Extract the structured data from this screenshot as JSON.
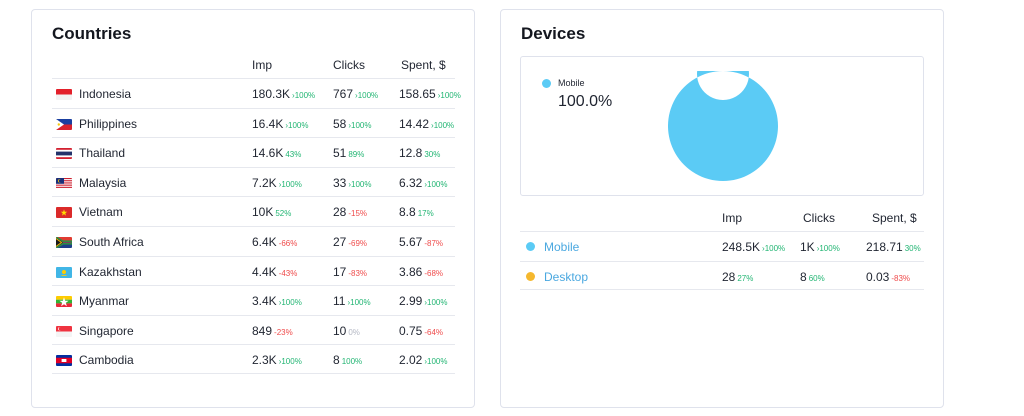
{
  "countries": {
    "title": "Countries",
    "headers": {
      "imp": "Imp",
      "clicks": "Clicks",
      "spent": "Spent, $"
    },
    "rows": [
      {
        "name": "Indonesia",
        "flag": "indonesia-flag-icon",
        "imp": "180.3K",
        "imp_delta": "›100%",
        "imp_trend": "up",
        "clicks": "767",
        "clicks_delta": "›100%",
        "clicks_trend": "up",
        "spent": "158.65",
        "spent_delta": "›100%",
        "spent_trend": "up"
      },
      {
        "name": "Philippines",
        "flag": "philippines-flag-icon",
        "imp": "16.4K",
        "imp_delta": "›100%",
        "imp_trend": "up",
        "clicks": "58",
        "clicks_delta": "›100%",
        "clicks_trend": "up",
        "spent": "14.42",
        "spent_delta": "›100%",
        "spent_trend": "up"
      },
      {
        "name": "Thailand",
        "flag": "thailand-flag-icon",
        "imp": "14.6K",
        "imp_delta": "43%",
        "imp_trend": "up",
        "clicks": "51",
        "clicks_delta": "89%",
        "clicks_trend": "up",
        "spent": "12.8",
        "spent_delta": "30%",
        "spent_trend": "up"
      },
      {
        "name": "Malaysia",
        "flag": "malaysia-flag-icon",
        "imp": "7.2K",
        "imp_delta": "›100%",
        "imp_trend": "up",
        "clicks": "33",
        "clicks_delta": "›100%",
        "clicks_trend": "up",
        "spent": "6.32",
        "spent_delta": "›100%",
        "spent_trend": "up"
      },
      {
        "name": "Vietnam",
        "flag": "vietnam-flag-icon",
        "imp": "10K",
        "imp_delta": "52%",
        "imp_trend": "up",
        "clicks": "28",
        "clicks_delta": "-15%",
        "clicks_trend": "down",
        "spent": "8.8",
        "spent_delta": "17%",
        "spent_trend": "up"
      },
      {
        "name": "South Africa",
        "flag": "south-africa-flag-icon",
        "imp": "6.4K",
        "imp_delta": "-66%",
        "imp_trend": "down",
        "clicks": "27",
        "clicks_delta": "-69%",
        "clicks_trend": "down",
        "spent": "5.67",
        "spent_delta": "-87%",
        "spent_trend": "down"
      },
      {
        "name": "Kazakhstan",
        "flag": "kazakhstan-flag-icon",
        "imp": "4.4K",
        "imp_delta": "-43%",
        "imp_trend": "down",
        "clicks": "17",
        "clicks_delta": "-83%",
        "clicks_trend": "down",
        "spent": "3.86",
        "spent_delta": "-68%",
        "spent_trend": "down"
      },
      {
        "name": "Myanmar",
        "flag": "myanmar-flag-icon",
        "imp": "3.4K",
        "imp_delta": "›100%",
        "imp_trend": "up",
        "clicks": "11",
        "clicks_delta": "›100%",
        "clicks_trend": "up",
        "spent": "2.99",
        "spent_delta": "›100%",
        "spent_trend": "up"
      },
      {
        "name": "Singapore",
        "flag": "singapore-flag-icon",
        "imp": "849",
        "imp_delta": "-23%",
        "imp_trend": "down",
        "clicks": "10",
        "clicks_delta": "0%",
        "clicks_trend": "neutral",
        "spent": "0.75",
        "spent_delta": "-64%",
        "spent_trend": "down"
      },
      {
        "name": "Cambodia",
        "flag": "cambodia-flag-icon",
        "imp": "2.3K",
        "imp_delta": "›100%",
        "imp_trend": "up",
        "clicks": "8",
        "clicks_delta": "100%",
        "clicks_trend": "up",
        "spent": "2.02",
        "spent_delta": "›100%",
        "spent_trend": "up"
      }
    ]
  },
  "devices": {
    "title": "Devices",
    "legend": {
      "name": "Mobile",
      "percent": "100.0%"
    },
    "chart_data": {
      "type": "pie",
      "categories": [
        "Mobile",
        "Desktop"
      ],
      "values": [
        100.0,
        0.0
      ],
      "colors": [
        "#5bcbf5",
        "#f5b82e"
      ]
    },
    "headers": {
      "imp": "Imp",
      "clicks": "Clicks",
      "spent": "Spent, $"
    },
    "rows": [
      {
        "name": "Mobile",
        "color": "#5bcbf5",
        "imp": "248.5K",
        "imp_delta": "›100%",
        "imp_trend": "up",
        "clicks": "1K",
        "clicks_delta": "›100%",
        "clicks_trend": "up",
        "spent": "218.71",
        "spent_delta": "30%",
        "spent_trend": "up"
      },
      {
        "name": "Desktop",
        "color": "#f5b82e",
        "imp": "28",
        "imp_delta": "27%",
        "imp_trend": "up",
        "clicks": "8",
        "clicks_delta": "60%",
        "clicks_trend": "up",
        "spent": "0.03",
        "spent_delta": "-83%",
        "spent_trend": "down"
      }
    ]
  }
}
